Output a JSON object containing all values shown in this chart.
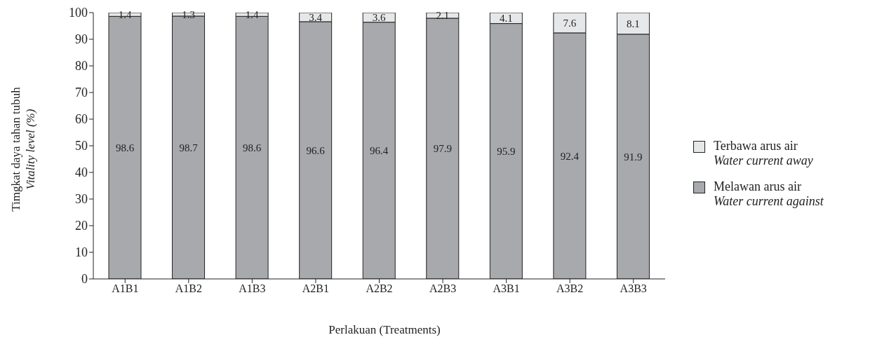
{
  "chart_data": {
    "type": "bar",
    "stacked": true,
    "xlabel": "Perlakuan (Treatments)",
    "ylabel": "Timgkat daya tahan tubuh\nVitality level (%)",
    "categories": [
      "A1B1",
      "A1B2",
      "A1B3",
      "A2B1",
      "A2B2",
      "A2B3",
      "A3B1",
      "A3B2",
      "A3B3"
    ],
    "series": [
      {
        "name": "Melawan arus air\nWater current against",
        "color": "#a7a9ac",
        "values": [
          98.6,
          98.7,
          98.6,
          96.6,
          96.4,
          97.9,
          95.9,
          92.4,
          91.9
        ]
      },
      {
        "name": "Terbawa arus air\nWater current away",
        "color": "#e6e7e8",
        "values": [
          1.4,
          1.3,
          1.4,
          3.4,
          3.6,
          2.1,
          4.1,
          7.6,
          8.1
        ]
      }
    ],
    "ylim": [
      0,
      100
    ],
    "yticks": [
      0,
      10,
      20,
      30,
      40,
      50,
      60,
      70,
      80,
      90,
      100
    ],
    "grid": false,
    "legend": "right",
    "data_labels": true
  }
}
